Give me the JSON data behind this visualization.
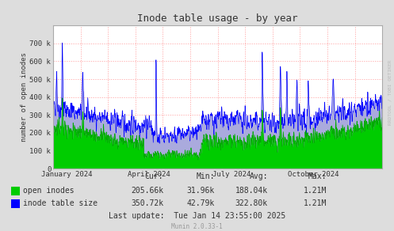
{
  "title": "Inode table usage - by year",
  "ylabel": "number of open inodes",
  "bg_color": "#DDDDDD",
  "plot_bg_color": "#FFFFFF",
  "grid_color": "#FF9999",
  "x_tick_labels": [
    "January 2024",
    "April 2024",
    "July 2024",
    "October 2024"
  ],
  "y_ticks": [
    0,
    100000,
    200000,
    300000,
    400000,
    500000,
    600000,
    700000
  ],
  "y_tick_labels": [
    "0",
    "100 k",
    "200 k",
    "300 k",
    "400 k",
    "500 k",
    "600 k",
    "700 k"
  ],
  "ylim": [
    0,
    800000
  ],
  "green_color": "#00CC00",
  "blue_color": "#0000FF",
  "blue_fill_color": "#AAAADD",
  "footer_row0": [
    "Cur:",
    "Min:",
    "Avg:",
    "Max:"
  ],
  "footer_row1_label": "open inodes",
  "footer_row1": [
    "205.66k",
    "31.96k",
    "188.04k",
    "1.21M"
  ],
  "footer_row2_label": "inode table size",
  "footer_row2": [
    "350.72k",
    "42.79k",
    "322.80k",
    "1.21M"
  ],
  "last_update": "Last update:  Tue Jan 14 23:55:00 2025",
  "munin_version": "Munin 2.0.33-1",
  "watermark": "RRDTOOL / TOBI OETIKER"
}
